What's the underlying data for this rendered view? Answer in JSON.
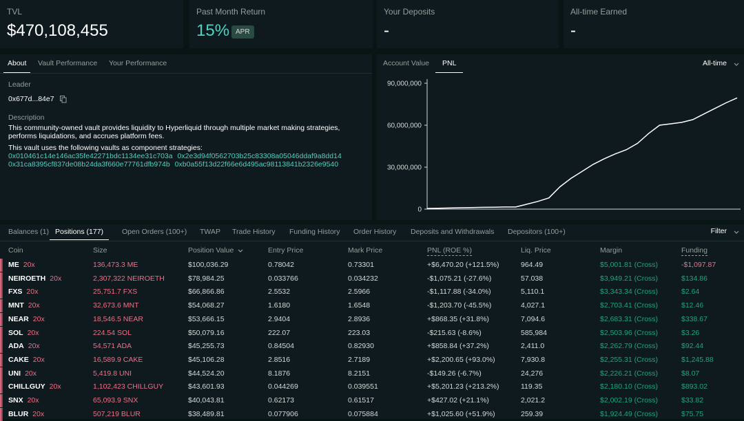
{
  "stats": [
    {
      "label": "TVL",
      "value": "$470,108,455"
    },
    {
      "label": "Past Month Return",
      "value": "15%",
      "badge": "APR"
    },
    {
      "label": "Your Deposits",
      "value": "-"
    },
    {
      "label": "All-time Earned",
      "value": "-"
    }
  ],
  "about": {
    "tabs": [
      "About",
      "Vault Performance",
      "Your Performance"
    ],
    "leader_label": "Leader",
    "leader": "0x677d...84e7",
    "description_label": "Description",
    "description": "This community-owned vault provides liquidity to Hyperliquid through multiple market making strategies, performs liquidations, and accrues platform fees.",
    "strategies_intro": "This vault uses the following vaults as component strategies:",
    "strategies": [
      "0x010461c14e146ac35fe42271bdc1134ee31c703a",
      "0x2e3d94f0562703b25c83308a05046ddaf9a8dd14",
      "0x31ca8395cf837de08b24da3f660e77761dfb974b",
      "0xb0a55f13d22f66e6d495ac98113841b2326e9540"
    ]
  },
  "chart_tabs": [
    "Account Value",
    "PNL"
  ],
  "range": "All-time",
  "chart_data": {
    "type": "line",
    "color": "#ffffff",
    "values": [
      500000,
      600000,
      800000,
      1000000,
      1100000,
      1300000,
      1400000,
      1500000,
      1500000,
      3500000,
      5500000,
      8000000,
      16000000,
      22000000,
      27000000,
      32000000,
      36000000,
      39500000,
      42500000,
      47000000,
      54000000,
      60000000,
      61000000,
      62000000,
      64000000,
      68000000,
      72000000,
      76000000,
      79500000
    ],
    "ylim": [
      0,
      90000000
    ],
    "yticks": [
      0,
      {
        "value": 30000000,
        "label": "30,000,000"
      },
      {
        "value": 60000000,
        "label": "60,000,000"
      },
      {
        "value": 90000000,
        "label": "90,000,000"
      }
    ]
  },
  "tabs": [
    "Balances (1)",
    "Positions (177)",
    "Open Orders (100+)",
    "TWAP",
    "Trade History",
    "Funding History",
    "Order History",
    "Deposits and Withdrawals",
    "Depositors (100+)"
  ],
  "filter": "Filter",
  "table": {
    "columns": [
      "Coin",
      "Size",
      "Position Value",
      "Entry Price",
      "Mark Price",
      "PNL (ROE %)",
      "Liq. Price",
      "Margin",
      "Funding"
    ],
    "rows": [
      [
        "ME",
        "20x",
        "136,473.3 ME",
        "$100,036.29",
        "0.78042",
        "0.73301",
        "+$6,470.20 (+121.5%)",
        "964.49",
        "$5,001.81 (Cross)",
        "-$1,097.87"
      ],
      [
        "NEIROETH",
        "20x",
        "2,307,322 NEIROETH",
        "$78,984.25",
        "0.033766",
        "0.034232",
        "-$1,075.21 (-27.6%)",
        "57.038",
        "$3,949.21 (Cross)",
        "$134.86"
      ],
      [
        "FXS",
        "20x",
        "25,751.7 FXS",
        "$66,866.86",
        "2.5532",
        "2.5966",
        "-$1,117.88 (-34.0%)",
        "5,110.1",
        "$3,343.34 (Cross)",
        "$2.64"
      ],
      [
        "MNT",
        "20x",
        "32,673.6 MNT",
        "$54,068.27",
        "1.6180",
        "1.6548",
        "-$1,203.70 (-45.5%)",
        "4,027.1",
        "$2,703.41 (Cross)",
        "$12.46"
      ],
      [
        "NEAR",
        "20x",
        "18,546.5 NEAR",
        "$53,666.15",
        "2.9404",
        "2.8936",
        "+$868.35 (+31.8%)",
        "7,094.6",
        "$2,683.31 (Cross)",
        "$338.67"
      ],
      [
        "SOL",
        "20x",
        "224.54 SOL",
        "$50,079.16",
        "222.07",
        "223.03",
        "-$215.63 (-8.6%)",
        "585,984",
        "$2,503.96 (Cross)",
        "$3.26"
      ],
      [
        "ADA",
        "20x",
        "54,571 ADA",
        "$45,255.73",
        "0.84504",
        "0.82930",
        "+$858.84 (+37.2%)",
        "2,411.0",
        "$2,262.79 (Cross)",
        "$92.44"
      ],
      [
        "CAKE",
        "20x",
        "16,589.9 CAKE",
        "$45,106.28",
        "2.8516",
        "2.7189",
        "+$2,200.65 (+93.0%)",
        "7,930.8",
        "$2,255.31 (Cross)",
        "$1,245.88"
      ],
      [
        "UNI",
        "20x",
        "5,419.8 UNI",
        "$44,524.20",
        "8.1876",
        "8.2151",
        "-$149.26 (-6.7%)",
        "24,276",
        "$2,226.21 (Cross)",
        "$8.07"
      ],
      [
        "CHILLGUY",
        "20x",
        "1,102,423 CHILLGUY",
        "$43,601.93",
        "0.044269",
        "0.039551",
        "+$5,201.23 (+213.2%)",
        "119.35",
        "$2,180.10 (Cross)",
        "$893.02"
      ],
      [
        "SNX",
        "20x",
        "65,093.9 SNX",
        "$40,043.81",
        "0.62173",
        "0.61517",
        "+$427.02 (+21.1%)",
        "2,021.2",
        "$2,002.19 (Cross)",
        "$33.82"
      ],
      [
        "BLUR",
        "20x",
        "507,219 BLUR",
        "$38,489.81",
        "0.077906",
        "0.075884",
        "+$1,025.60 (+51.9%)",
        "259.39",
        "$1,924.49 (Cross)",
        "$75.75"
      ]
    ]
  }
}
